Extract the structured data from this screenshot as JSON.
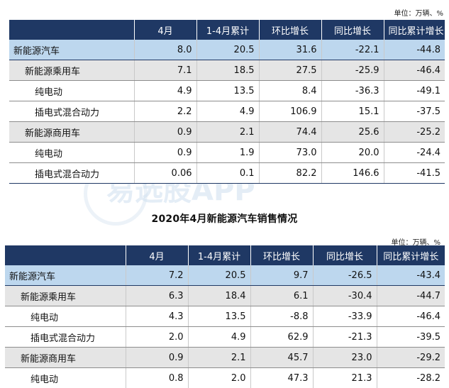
{
  "top": {
    "unit": "单位：万辆、%",
    "headers": [
      "",
      "4月",
      "1-4月累计",
      "环比增长",
      "同比增长",
      "同比累计增长"
    ],
    "rows": [
      {
        "level": 0,
        "cells": [
          "新能源汽车",
          "8.0",
          "20.5",
          "31.6",
          "-22.1",
          "-44.8"
        ]
      },
      {
        "level": 1,
        "cells": [
          "新能源乘用车",
          "7.1",
          "18.5",
          "27.5",
          "-25.9",
          "-46.4"
        ]
      },
      {
        "level": 2,
        "cells": [
          "纯电动",
          "4.9",
          "13.5",
          "8.4",
          "-36.3",
          "-49.1"
        ]
      },
      {
        "level": 2,
        "cells": [
          "插电式混合动力",
          "2.2",
          "4.9",
          "106.9",
          "15.1",
          "-37.5"
        ]
      },
      {
        "level": 1,
        "cells": [
          "新能源商用车",
          "0.9",
          "2.1",
          "74.4",
          "25.6",
          "-25.2"
        ]
      },
      {
        "level": 2,
        "cells": [
          "纯电动",
          "0.9",
          "1.9",
          "73.0",
          "20.0",
          "-24.4"
        ]
      },
      {
        "level": 2,
        "cells": [
          "插电式混合动力",
          "0.06",
          "0.1",
          "82.2",
          "146.6",
          "-41.5"
        ]
      }
    ]
  },
  "watermark": "易选股APP",
  "caption": "2020年4月新能源汽车销售情况",
  "bottom": {
    "unit": "单位：万辆、%",
    "headers": [
      "",
      "4月",
      "1-4月累计",
      "环比增长",
      "同比增长",
      "同比累计增长"
    ],
    "rows": [
      {
        "level": 0,
        "cells": [
          "新能源汽车",
          "7.2",
          "20.5",
          "9.7",
          "-26.5",
          "-43.4"
        ]
      },
      {
        "level": 1,
        "cells": [
          "新能源乘用车",
          "6.3",
          "18.4",
          "6.1",
          "-30.4",
          "-44.7"
        ]
      },
      {
        "level": 2,
        "cells": [
          "纯电动",
          "4.3",
          "13.5",
          "-8.8",
          "-33.9",
          "-46.4"
        ]
      },
      {
        "level": 2,
        "cells": [
          "插电式混合动力",
          "2.0",
          "4.9",
          "62.9",
          "-21.3",
          "-39.5"
        ]
      },
      {
        "level": 1,
        "cells": [
          "新能源商用车",
          "0.9",
          "2.1",
          "45.7",
          "23.0",
          "-29.2"
        ]
      },
      {
        "level": 2,
        "cells": [
          "纯电动",
          "0.8",
          "2.0",
          "47.3",
          "21.3",
          "-28.2"
        ]
      }
    ]
  }
}
